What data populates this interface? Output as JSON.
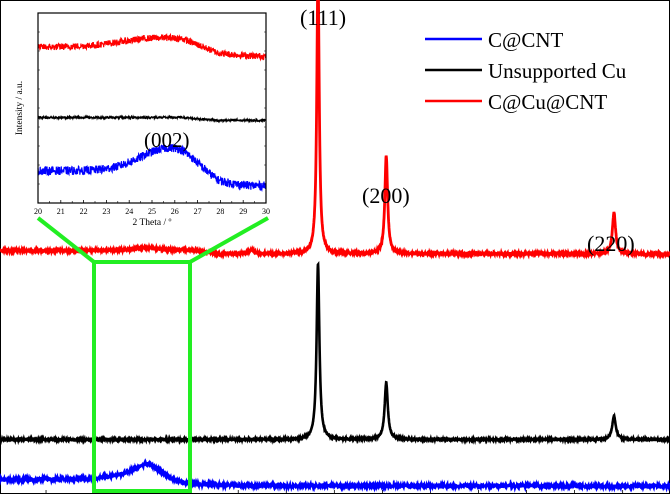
{
  "chart_data": [
    {
      "id": "main",
      "type": "line",
      "title": "",
      "xlabel": "",
      "ylabel": "",
      "grid": false,
      "legend_position": "upper right",
      "x_unit": "2 Theta / degree (implied)",
      "xlim": [
        10,
        80
      ],
      "note": "Stacked XRD patterns, y offsets in arbitrary units; x values estimated from peak positions of Cu (111)/(200)/(220) reflections.",
      "series": [
        {
          "name": "C@CNT",
          "color": "#0000ff",
          "baseline": 0.0,
          "features": [
            {
              "x": 25.5,
              "height": 0.03,
              "width": 4.0
            }
          ],
          "noise": 0.004
        },
        {
          "name": "Unsupported Cu",
          "color": "#000000",
          "baseline": 0.09,
          "features": [
            {
              "x": 43.3,
              "height": 0.34,
              "width": 0.35
            },
            {
              "x": 50.4,
              "height": 0.11,
              "width": 0.4
            },
            {
              "x": 74.1,
              "height": 0.045,
              "width": 0.45
            }
          ],
          "noise": 0.002
        },
        {
          "name": "C@Cu@CNT",
          "color": "#ff0000",
          "baseline": 0.45,
          "features": [
            {
              "x": 25.5,
              "height": 0.006,
              "width": 3.0
            },
            {
              "x": 36.4,
              "height": 0.008,
              "width": 0.5
            },
            {
              "x": 43.3,
              "height": 0.55,
              "width": 0.3
            },
            {
              "x": 50.4,
              "height": 0.19,
              "width": 0.35
            },
            {
              "x": 74.1,
              "height": 0.08,
              "width": 0.4
            }
          ],
          "noise": 0.003
        }
      ],
      "annotations": [
        {
          "text": "(111)",
          "x": 43.3
        },
        {
          "text": "(200)",
          "x": 50.4
        },
        {
          "text": "(220)",
          "x": 74.1
        }
      ],
      "highlight_box": {
        "x_range": [
          20,
          30
        ],
        "color": "#00ee00"
      }
    },
    {
      "id": "inset",
      "type": "line",
      "title": "",
      "xlabel": "2 Theta / º",
      "ylabel": "Intensity / a.u.",
      "xlim": [
        20,
        30
      ],
      "xticks": [
        20,
        21,
        22,
        23,
        24,
        25,
        26,
        27,
        28,
        29,
        30
      ],
      "grid": false,
      "series": [
        {
          "name": "C@Cu@CNT",
          "color": "#ff0000",
          "level": 0.82,
          "hump": {
            "x": 25.5,
            "height": 0.05,
            "width": 2.5
          },
          "tail_drop": 0.05,
          "noise": 0.035
        },
        {
          "name": "Unsupported Cu",
          "color": "#000000",
          "level": 0.45,
          "hump": {
            "x": 25.5,
            "height": 0.0,
            "width": 2.0
          },
          "tail_drop": 0.015,
          "noise": 0.012
        },
        {
          "name": "C@CNT",
          "color": "#0000ff",
          "level": 0.17,
          "hump": {
            "x": 25.8,
            "height": 0.12,
            "width": 1.8
          },
          "tail_drop": 0.08,
          "noise": 0.045
        }
      ],
      "annotations": [
        {
          "text": "(002)",
          "x": 25.5
        }
      ]
    }
  ],
  "legend": {
    "items": [
      {
        "label": "C@CNT",
        "color": "#0000ff"
      },
      {
        "label": "Unsupported Cu",
        "color": "#000000"
      },
      {
        "label": "C@Cu@CNT",
        "color": "#ff0000"
      }
    ]
  },
  "peak_labels": [
    "(111)",
    "(200)",
    "(220)"
  ],
  "inset": {
    "ylabel": "Intensity / a.u.",
    "xlabel": "2 Theta / º",
    "peak_label": "(002)",
    "xticks": [
      "20",
      "21",
      "22",
      "23",
      "24",
      "25",
      "26",
      "27",
      "28",
      "29",
      "30"
    ]
  },
  "colors": {
    "highlight": "#22ee22",
    "frame": "#000000"
  }
}
